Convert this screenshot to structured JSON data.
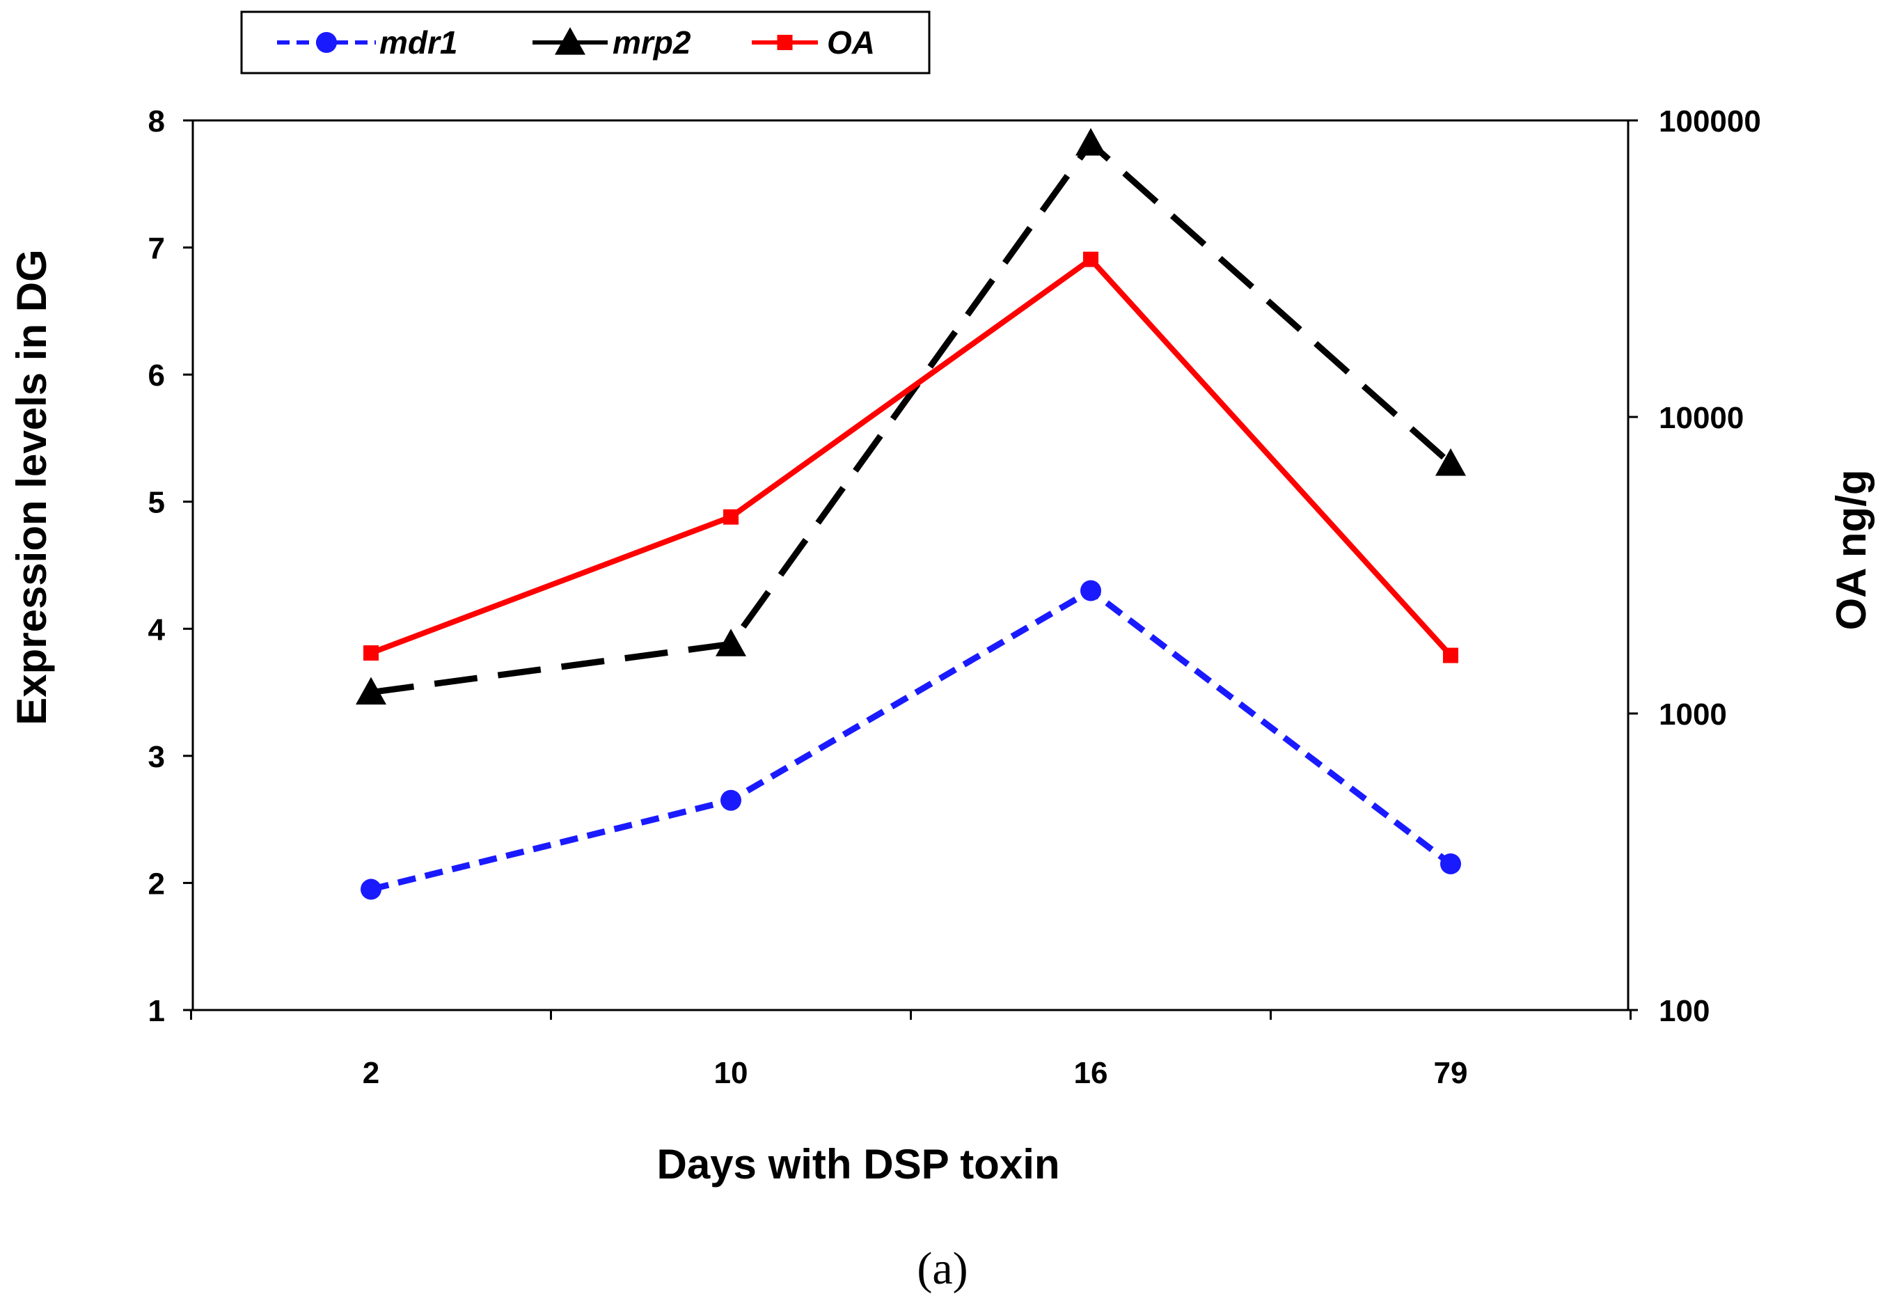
{
  "chart_data": {
    "type": "line",
    "title": "",
    "categories": [
      "2",
      "10",
      "16",
      "79"
    ],
    "xlabel": "Days with DSP toxin",
    "ylabel": "Expression levels  in DG",
    "ylabel_right": "OA ng/g",
    "ylim": [
      1,
      8
    ],
    "yticks": [
      "1",
      "2",
      "3",
      "4",
      "5",
      "6",
      "7",
      "8"
    ],
    "ylim_right": [
      100,
      100000
    ],
    "yscale_right": "log",
    "yticks_right": [
      "100",
      "1000",
      "10000",
      "100000"
    ],
    "grid": false,
    "legend_position": "top-left",
    "caption": "(a)",
    "series": [
      {
        "name": "mdr1",
        "axis": "left",
        "values": [
          1.95,
          2.65,
          4.3,
          2.15
        ],
        "color": "#1a1aff",
        "line_style": "dashed",
        "marker": "circle"
      },
      {
        "name": "mrp2",
        "axis": "left",
        "values": [
          3.5,
          3.88,
          7.82,
          5.3
        ],
        "color": "#000000",
        "line_style": "long-dash",
        "marker": "triangle"
      },
      {
        "name": "OA",
        "axis": "right",
        "values": [
          1600,
          4600,
          34000,
          1570
        ],
        "color": "#ff0000",
        "line_style": "solid",
        "marker": "square"
      }
    ]
  }
}
